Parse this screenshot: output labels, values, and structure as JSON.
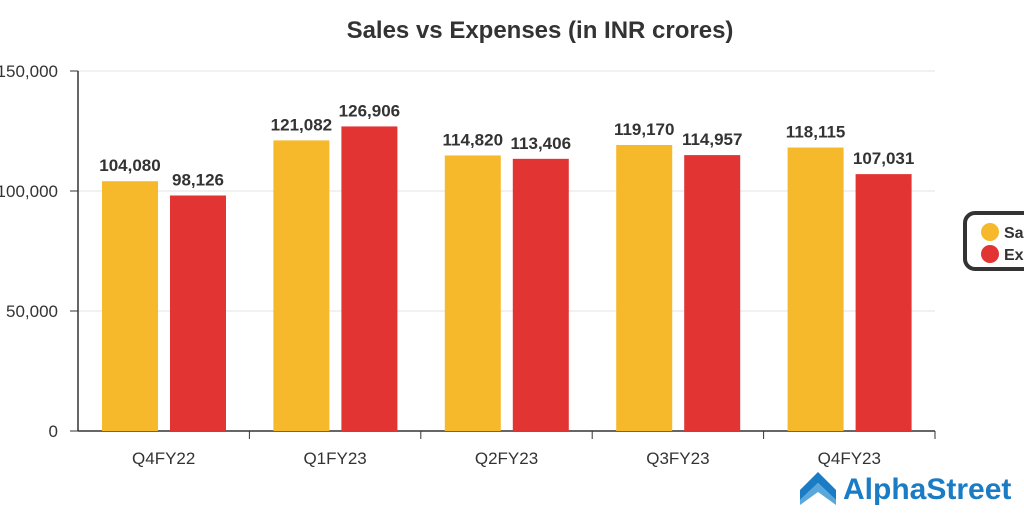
{
  "chart_data": {
    "type": "bar",
    "title": "Sales vs Expenses (in INR crores)",
    "categories": [
      "Q4FY22",
      "Q1FY23",
      "Q2FY23",
      "Q3FY23",
      "Q4FY23"
    ],
    "series": [
      {
        "name": "Sales",
        "color": "#F6B92B",
        "values": [
          104080,
          121082,
          114820,
          119170,
          118115
        ],
        "labels": [
          "104,080",
          "121,082",
          "114,820",
          "119,170",
          "118,115"
        ]
      },
      {
        "name": "Expenses",
        "color": "#E33434",
        "values": [
          98126,
          126906,
          113406,
          114957,
          107031
        ],
        "labels": [
          "98,126",
          "126,906",
          "113,406",
          "114,957",
          "107,031"
        ]
      }
    ],
    "yticks": [
      0,
      50000,
      100000,
      150000
    ],
    "ytick_labels": [
      "0",
      "50,000",
      "100,000",
      "150,000"
    ],
    "ylim": [
      0,
      150000
    ],
    "xlabel": "",
    "ylabel": "",
    "grid": true,
    "legend_position": "right"
  },
  "branding": {
    "logo_text": "AlphaStreet",
    "logo_color": "#1a7cc4"
  }
}
